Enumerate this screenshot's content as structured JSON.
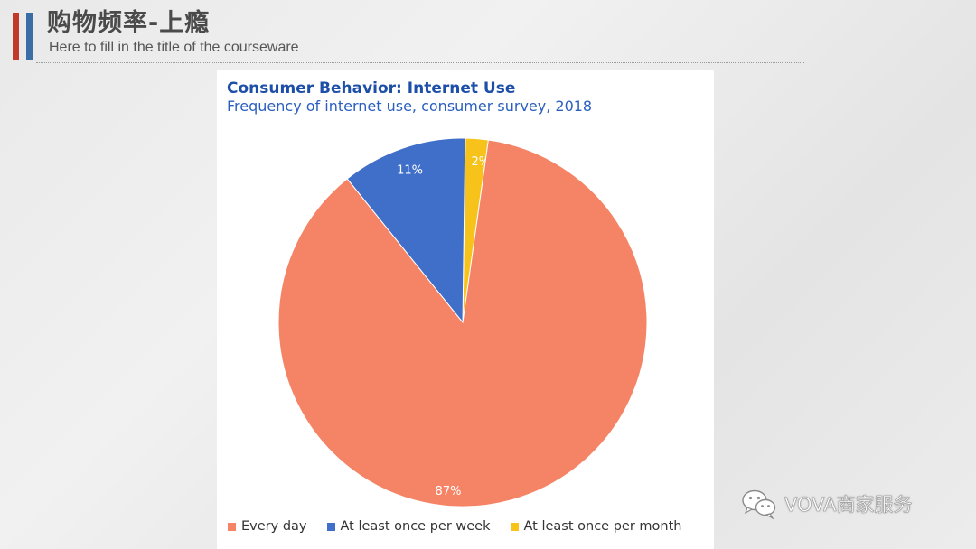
{
  "header": {
    "title": "购物频率-上瘾",
    "subtitle": "Here to fill in the title of the courseware"
  },
  "chart_data": {
    "type": "pie",
    "title": "Consumer Behavior: Internet Use",
    "subtitle": "Frequency of internet use, consumer survey, 2018",
    "categories": [
      "Every day",
      "At least once per week",
      "At least once per month"
    ],
    "values": [
      87,
      11,
      2
    ],
    "labels": [
      "87%",
      "11%",
      "2%"
    ],
    "colors": [
      "#f58466",
      "#3f6fc8",
      "#f7c21a"
    ],
    "legend": "bottom"
  },
  "watermark": {
    "text": "VOVA商家服务",
    "icon": "wechat-icon"
  }
}
